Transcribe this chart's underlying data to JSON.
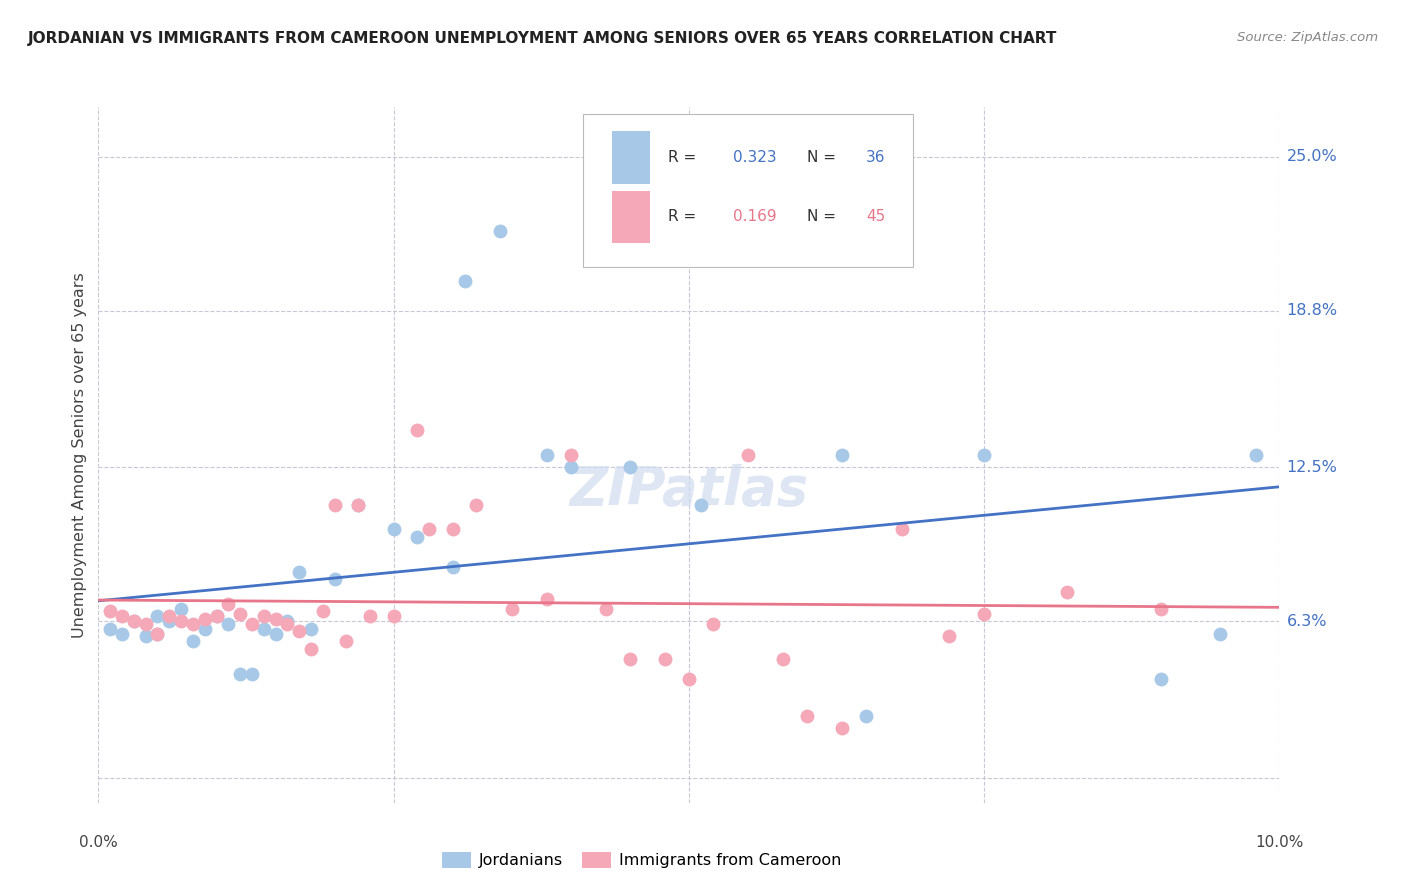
{
  "title": "JORDANIAN VS IMMIGRANTS FROM CAMEROON UNEMPLOYMENT AMONG SENIORS OVER 65 YEARS CORRELATION CHART",
  "source": "Source: ZipAtlas.com",
  "ylabel": "Unemployment Among Seniors over 65 years",
  "y_ticks": [
    0.0,
    0.063,
    0.125,
    0.188,
    0.25
  ],
  "y_tick_labels": [
    "",
    "6.3%",
    "12.5%",
    "18.8%",
    "25.0%"
  ],
  "x_lim": [
    0.0,
    0.1
  ],
  "y_lim": [
    -0.01,
    0.27
  ],
  "jordanians_R": 0.323,
  "jordanians_N": 36,
  "cameroon_R": 0.169,
  "cameroon_N": 45,
  "blue_color": "#A8C8E8",
  "pink_color": "#F4A8B8",
  "blue_line_color": "#4472C4",
  "pink_line_color": "#E8768A",
  "text_blue": "#4472C4",
  "text_pink": "#E8768A",
  "background": "#ffffff",
  "grid_color": "#C8C8D8",
  "jordanians_x": [
    0.001,
    0.002,
    0.003,
    0.004,
    0.005,
    0.005,
    0.006,
    0.007,
    0.008,
    0.009,
    0.01,
    0.011,
    0.012,
    0.013,
    0.014,
    0.015,
    0.016,
    0.017,
    0.018,
    0.02,
    0.022,
    0.025,
    0.027,
    0.03,
    0.031,
    0.034,
    0.038,
    0.04,
    0.045,
    0.051,
    0.063,
    0.065,
    0.075,
    0.09,
    0.095,
    0.098
  ],
  "jordanians_y": [
    0.06,
    0.058,
    0.063,
    0.057,
    0.058,
    0.065,
    0.063,
    0.068,
    0.055,
    0.06,
    0.065,
    0.062,
    0.042,
    0.042,
    0.06,
    0.058,
    0.063,
    0.083,
    0.06,
    0.08,
    0.11,
    0.1,
    0.097,
    0.085,
    0.2,
    0.22,
    0.13,
    0.125,
    0.125,
    0.11,
    0.13,
    0.025,
    0.13,
    0.04,
    0.058,
    0.13
  ],
  "cameroon_x": [
    0.001,
    0.002,
    0.003,
    0.004,
    0.005,
    0.006,
    0.007,
    0.008,
    0.009,
    0.01,
    0.011,
    0.012,
    0.013,
    0.014,
    0.015,
    0.016,
    0.017,
    0.018,
    0.019,
    0.02,
    0.021,
    0.022,
    0.023,
    0.025,
    0.027,
    0.028,
    0.03,
    0.032,
    0.035,
    0.038,
    0.04,
    0.043,
    0.045,
    0.048,
    0.05,
    0.052,
    0.055,
    0.058,
    0.06,
    0.063,
    0.068,
    0.072,
    0.075,
    0.082,
    0.09
  ],
  "cameroon_y": [
    0.067,
    0.065,
    0.063,
    0.062,
    0.058,
    0.065,
    0.063,
    0.062,
    0.064,
    0.065,
    0.07,
    0.066,
    0.062,
    0.065,
    0.064,
    0.062,
    0.059,
    0.052,
    0.067,
    0.11,
    0.055,
    0.11,
    0.065,
    0.065,
    0.14,
    0.1,
    0.1,
    0.11,
    0.068,
    0.072,
    0.13,
    0.068,
    0.048,
    0.048,
    0.04,
    0.062,
    0.13,
    0.048,
    0.025,
    0.02,
    0.1,
    0.057,
    0.066,
    0.075,
    0.068
  ]
}
